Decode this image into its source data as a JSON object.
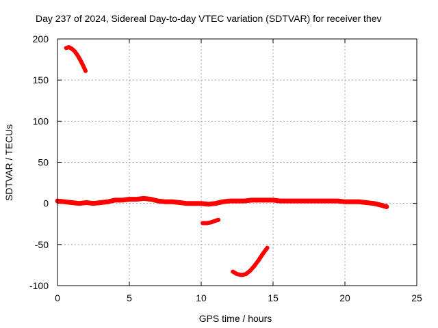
{
  "chart_data": {
    "type": "scatter",
    "title": "Day 237 of 2024, Sidereal Day-to-day VTEC variation (SDTVAR) for receiver thev",
    "xlabel": "GPS time / hours",
    "ylabel": "SDTVAR / TECUs",
    "xlim": [
      0,
      25
    ],
    "ylim": [
      -100,
      200
    ],
    "xticks": [
      "0",
      "5",
      "10",
      "15",
      "20",
      "25"
    ],
    "xtick_values": [
      0,
      5,
      10,
      15,
      20,
      25
    ],
    "yticks": [
      "200",
      "150",
      "100",
      "50",
      "0",
      "-50",
      "-100"
    ],
    "ytick_values": [
      200,
      150,
      100,
      50,
      0,
      -50,
      -100
    ],
    "grid": true,
    "color": "#ff0000",
    "series": [
      {
        "name": "main-track",
        "x": [
          0.0,
          0.5,
          1.0,
          1.5,
          2.0,
          2.5,
          3.0,
          3.5,
          4.0,
          4.5,
          5.0,
          5.5,
          6.0,
          6.5,
          7.0,
          7.5,
          8.0,
          8.5,
          9.0,
          9.5,
          10.0,
          10.5,
          11.0,
          11.5,
          12.0,
          12.5,
          13.0,
          13.5,
          14.0,
          14.5,
          15.0,
          15.5,
          16.0,
          16.5,
          17.0,
          17.5,
          18.0,
          18.5,
          19.0,
          19.5,
          20.0,
          20.5,
          21.0,
          21.5,
          22.0,
          22.5,
          22.9
        ],
        "y": [
          3,
          2,
          1,
          0,
          1,
          0,
          1,
          2,
          4,
          4,
          5,
          5,
          6,
          5,
          3,
          2,
          2,
          1,
          0,
          0,
          0,
          -1,
          0,
          2,
          3,
          3,
          3,
          4,
          4,
          4,
          4,
          3,
          3,
          3,
          3,
          3,
          3,
          3,
          3,
          3,
          2,
          2,
          2,
          1,
          0,
          -2,
          -4
        ]
      },
      {
        "name": "arc-1",
        "x": [
          0.6,
          0.8,
          1.0,
          1.2,
          1.4,
          1.6,
          1.8,
          1.95
        ],
        "y": [
          189,
          190,
          188,
          185,
          180,
          174,
          167,
          161
        ]
      },
      {
        "name": "arc-2",
        "x": [
          10.1,
          10.4,
          10.7,
          11.0,
          11.2
        ],
        "y": [
          -24,
          -24,
          -23,
          -21,
          -20
        ]
      },
      {
        "name": "arc-3",
        "x": [
          12.2,
          12.5,
          12.8,
          13.1,
          13.4,
          13.7,
          14.0,
          14.3,
          14.6
        ],
        "y": [
          -83,
          -86,
          -87,
          -86,
          -82,
          -76,
          -69,
          -61,
          -54
        ]
      }
    ]
  }
}
